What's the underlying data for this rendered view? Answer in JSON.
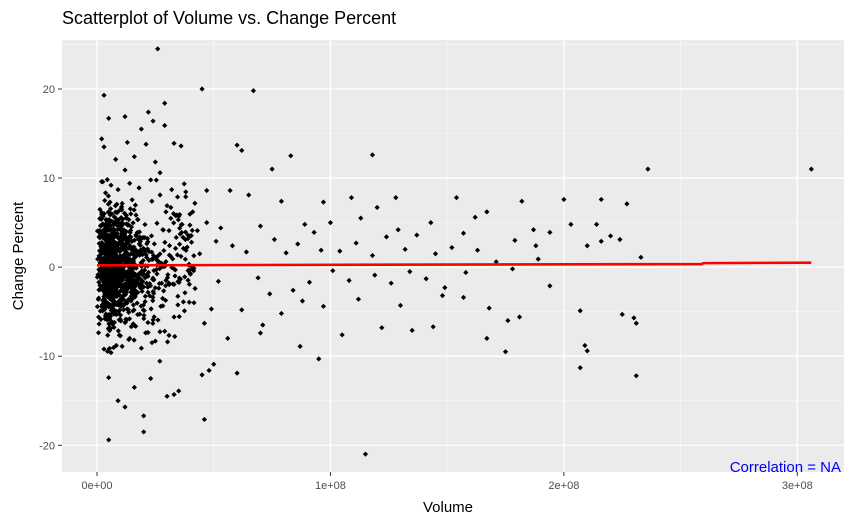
{
  "chart_data": {
    "type": "scatter",
    "title": "Scatterplot of Volume vs. Change Percent",
    "xlabel": "Volume",
    "ylabel": "Change Percent",
    "xlim": [
      -15000000,
      320000000
    ],
    "ylim": [
      -23,
      25.5
    ],
    "x_ticks": [
      {
        "value": 0,
        "label": "0e+00"
      },
      {
        "value": 100000000,
        "label": "1e+08"
      },
      {
        "value": 200000000,
        "label": "2e+08"
      },
      {
        "value": 300000000,
        "label": "3e+08"
      }
    ],
    "y_ticks": [
      {
        "value": -20,
        "label": "-20"
      },
      {
        "value": -10,
        "label": "-10"
      },
      {
        "value": 0,
        "label": "0"
      },
      {
        "value": 10,
        "label": "10"
      },
      {
        "value": 20,
        "label": "20"
      }
    ],
    "grid": true,
    "background": "#EBEBEB",
    "point_color": "#000000",
    "trend_color": "#FF0000",
    "annotation": {
      "text": "Correlation = NA",
      "color": "#0000FF"
    },
    "trend_line": [
      {
        "x": 0,
        "y": 0.2
      },
      {
        "x": 259000000,
        "y": 0.35
      },
      {
        "x": 260000000,
        "y": 0.45
      },
      {
        "x": 306000000,
        "y": 0.5
      }
    ],
    "series": [
      {
        "points": [
          {
            "x": 26000000,
            "y": 24.5
          },
          {
            "x": 45000000,
            "y": 20.0
          },
          {
            "x": 67000000,
            "y": 19.8
          },
          {
            "x": 3000000,
            "y": 19.3
          },
          {
            "x": 29000000,
            "y": 18.4
          },
          {
            "x": 22000000,
            "y": 17.4
          },
          {
            "x": 12000000,
            "y": 16.9
          },
          {
            "x": 5000000,
            "y": 16.7
          },
          {
            "x": 24000000,
            "y": 16.4
          },
          {
            "x": 29000000,
            "y": 15.9
          },
          {
            "x": 19000000,
            "y": 15.5
          },
          {
            "x": 2000000,
            "y": 14.4
          },
          {
            "x": 13000000,
            "y": 14.0
          },
          {
            "x": 21000000,
            "y": 13.8
          },
          {
            "x": 33000000,
            "y": 13.9
          },
          {
            "x": 60000000,
            "y": 13.7
          },
          {
            "x": 36000000,
            "y": 13.6
          },
          {
            "x": 3000000,
            "y": 13.5
          },
          {
            "x": 62000000,
            "y": 13.1
          },
          {
            "x": 83000000,
            "y": 12.5
          },
          {
            "x": 118000000,
            "y": 12.6
          },
          {
            "x": 16000000,
            "y": 12.4
          },
          {
            "x": 8000000,
            "y": 12.1
          },
          {
            "x": 25000000,
            "y": 11.8
          },
          {
            "x": 75000000,
            "y": 11.0
          },
          {
            "x": 236000000,
            "y": 11.0
          },
          {
            "x": 306000000,
            "y": 11.0
          },
          {
            "x": 47000000,
            "y": 8.6
          },
          {
            "x": 57000000,
            "y": 8.6
          },
          {
            "x": 65000000,
            "y": 8.1
          },
          {
            "x": 109000000,
            "y": 7.8
          },
          {
            "x": 128000000,
            "y": 7.8
          },
          {
            "x": 154000000,
            "y": 7.8
          },
          {
            "x": 182000000,
            "y": 7.4
          },
          {
            "x": 200000000,
            "y": 7.6
          },
          {
            "x": 216000000,
            "y": 7.6
          },
          {
            "x": 227000000,
            "y": 7.1
          },
          {
            "x": 97000000,
            "y": 7.3
          },
          {
            "x": 79000000,
            "y": 7.4
          },
          {
            "x": 120000000,
            "y": 6.7
          },
          {
            "x": 167000000,
            "y": 6.2
          },
          {
            "x": 162000000,
            "y": 5.6
          },
          {
            "x": 143000000,
            "y": 5.0
          },
          {
            "x": 113000000,
            "y": 5.5
          },
          {
            "x": 100000000,
            "y": 5.0
          },
          {
            "x": 89000000,
            "y": 4.8
          },
          {
            "x": 70000000,
            "y": 4.6
          },
          {
            "x": 53000000,
            "y": 4.4
          },
          {
            "x": 187000000,
            "y": 4.2
          },
          {
            "x": 203000000,
            "y": 4.8
          },
          {
            "x": 214000000,
            "y": 4.8
          },
          {
            "x": 220000000,
            "y": 3.5
          },
          {
            "x": 224000000,
            "y": 3.1
          },
          {
            "x": 194000000,
            "y": 3.9
          },
          {
            "x": 179000000,
            "y": 3.0
          },
          {
            "x": 157000000,
            "y": 3.8
          },
          {
            "x": 137000000,
            "y": 3.6
          },
          {
            "x": 129000000,
            "y": 4.2
          },
          {
            "x": 124000000,
            "y": 3.4
          },
          {
            "x": 111000000,
            "y": 2.7
          },
          {
            "x": 93000000,
            "y": 3.9
          },
          {
            "x": 86000000,
            "y": 2.6
          },
          {
            "x": 76000000,
            "y": 3.1
          },
          {
            "x": 188000000,
            "y": 2.4
          },
          {
            "x": 216000000,
            "y": 2.9
          },
          {
            "x": 233000000,
            "y": 1.1
          },
          {
            "x": 210000000,
            "y": 2.4
          },
          {
            "x": 163000000,
            "y": 1.9
          },
          {
            "x": 152000000,
            "y": 2.2
          },
          {
            "x": 145000000,
            "y": 1.5
          },
          {
            "x": 132000000,
            "y": 2.0
          },
          {
            "x": 118000000,
            "y": 1.3
          },
          {
            "x": 104000000,
            "y": 1.8
          },
          {
            "x": 96000000,
            "y": 1.9
          },
          {
            "x": 81000000,
            "y": 1.6
          },
          {
            "x": 64000000,
            "y": 1.7
          },
          {
            "x": 58000000,
            "y": 2.4
          },
          {
            "x": 178000000,
            "y": -0.2
          },
          {
            "x": 194000000,
            "y": -2.1
          },
          {
            "x": 189000000,
            "y": 0.9
          },
          {
            "x": 171000000,
            "y": 0.6
          },
          {
            "x": 158000000,
            "y": -0.6
          },
          {
            "x": 149000000,
            "y": -2.3
          },
          {
            "x": 141000000,
            "y": -1.3
          },
          {
            "x": 134000000,
            "y": -0.5
          },
          {
            "x": 126000000,
            "y": -1.8
          },
          {
            "x": 119000000,
            "y": -0.9
          },
          {
            "x": 108000000,
            "y": -1.5
          },
          {
            "x": 101000000,
            "y": -0.4
          },
          {
            "x": 91000000,
            "y": -1.7
          },
          {
            "x": 84000000,
            "y": -2.6
          },
          {
            "x": 74000000,
            "y": -3.0
          },
          {
            "x": 69000000,
            "y": -1.2
          },
          {
            "x": 207000000,
            "y": -4.9
          },
          {
            "x": 225000000,
            "y": -5.3
          },
          {
            "x": 230000000,
            "y": -5.7
          },
          {
            "x": 231000000,
            "y": -6.3
          },
          {
            "x": 181000000,
            "y": -5.6
          },
          {
            "x": 176000000,
            "y": -6.0
          },
          {
            "x": 168000000,
            "y": -4.6
          },
          {
            "x": 157000000,
            "y": -3.4
          },
          {
            "x": 148000000,
            "y": -3.2
          },
          {
            "x": 130000000,
            "y": -4.3
          },
          {
            "x": 122000000,
            "y": -6.8
          },
          {
            "x": 112000000,
            "y": -3.6
          },
          {
            "x": 97000000,
            "y": -4.4
          },
          {
            "x": 88000000,
            "y": -3.8
          },
          {
            "x": 79000000,
            "y": -5.2
          },
          {
            "x": 71000000,
            "y": -6.5
          },
          {
            "x": 62000000,
            "y": -4.8
          },
          {
            "x": 167000000,
            "y": -8.0
          },
          {
            "x": 175000000,
            "y": -9.5
          },
          {
            "x": 209000000,
            "y": -8.8
          },
          {
            "x": 210000000,
            "y": -9.4
          },
          {
            "x": 207000000,
            "y": -11.3
          },
          {
            "x": 231000000,
            "y": -12.2
          },
          {
            "x": 144000000,
            "y": -6.7
          },
          {
            "x": 135000000,
            "y": -7.1
          },
          {
            "x": 105000000,
            "y": -7.6
          },
          {
            "x": 95000000,
            "y": -10.3
          },
          {
            "x": 87000000,
            "y": -8.9
          },
          {
            "x": 70000000,
            "y": -7.4
          },
          {
            "x": 56000000,
            "y": -8.0
          },
          {
            "x": 50000000,
            "y": -10.9
          },
          {
            "x": 48000000,
            "y": -11.6
          },
          {
            "x": 60000000,
            "y": -11.9
          },
          {
            "x": 45000000,
            "y": -12.1
          },
          {
            "x": 35000000,
            "y": -13.9
          },
          {
            "x": 33000000,
            "y": -14.3
          },
          {
            "x": 30000000,
            "y": -14.5
          },
          {
            "x": 16000000,
            "y": -13.5
          },
          {
            "x": 23000000,
            "y": -12.5
          },
          {
            "x": 12000000,
            "y": -15.7
          },
          {
            "x": 9000000,
            "y": -15.0
          },
          {
            "x": 5000000,
            "y": -12.4
          },
          {
            "x": 20000000,
            "y": -16.7
          },
          {
            "x": 46000000,
            "y": -17.1
          },
          {
            "x": 20000000,
            "y": -18.5
          },
          {
            "x": 5000000,
            "y": -19.4
          },
          {
            "x": 115000000,
            "y": -21.0
          },
          {
            "x": 2000000,
            "y": 9.6
          },
          {
            "x": 6000000,
            "y": 9.2
          },
          {
            "x": 9000000,
            "y": 8.7
          },
          {
            "x": 14000000,
            "y": 9.4
          },
          {
            "x": 18000000,
            "y": 8.9
          },
          {
            "x": 23000000,
            "y": 9.8
          },
          {
            "x": 27000000,
            "y": 8.1
          },
          {
            "x": 32000000,
            "y": 8.7
          },
          {
            "x": 38000000,
            "y": 7.9
          },
          {
            "x": 41000000,
            "y": 6.2
          },
          {
            "x": 35000000,
            "y": 5.7
          },
          {
            "x": 30000000,
            "y": 6.9
          },
          {
            "x": 43000000,
            "y": 4.1
          },
          {
            "x": 39000000,
            "y": 3.2
          },
          {
            "x": 44000000,
            "y": 1.5
          },
          {
            "x": 40000000,
            "y": -0.8
          },
          {
            "x": 42000000,
            "y": -2.4
          },
          {
            "x": 37000000,
            "y": -3.9
          },
          {
            "x": 33000000,
            "y": -5.6
          },
          {
            "x": 29000000,
            "y": -7.2
          },
          {
            "x": 25000000,
            "y": -8.3
          },
          {
            "x": 19000000,
            "y": -9.1
          },
          {
            "x": 14000000,
            "y": -8.0
          },
          {
            "x": 10000000,
            "y": -7.7
          },
          {
            "x": 6000000,
            "y": -9.6
          },
          {
            "x": 3000000,
            "y": -9.2
          },
          {
            "x": 27000000,
            "y": 10.6
          },
          {
            "x": 12000000,
            "y": 10.9
          },
          {
            "x": 47000000,
            "y": 5.0
          },
          {
            "x": 51000000,
            "y": 2.9
          },
          {
            "x": 52000000,
            "y": -1.6
          },
          {
            "x": 49000000,
            "y": -4.7
          },
          {
            "x": 46000000,
            "y": -6.3
          }
        ]
      }
    ]
  }
}
